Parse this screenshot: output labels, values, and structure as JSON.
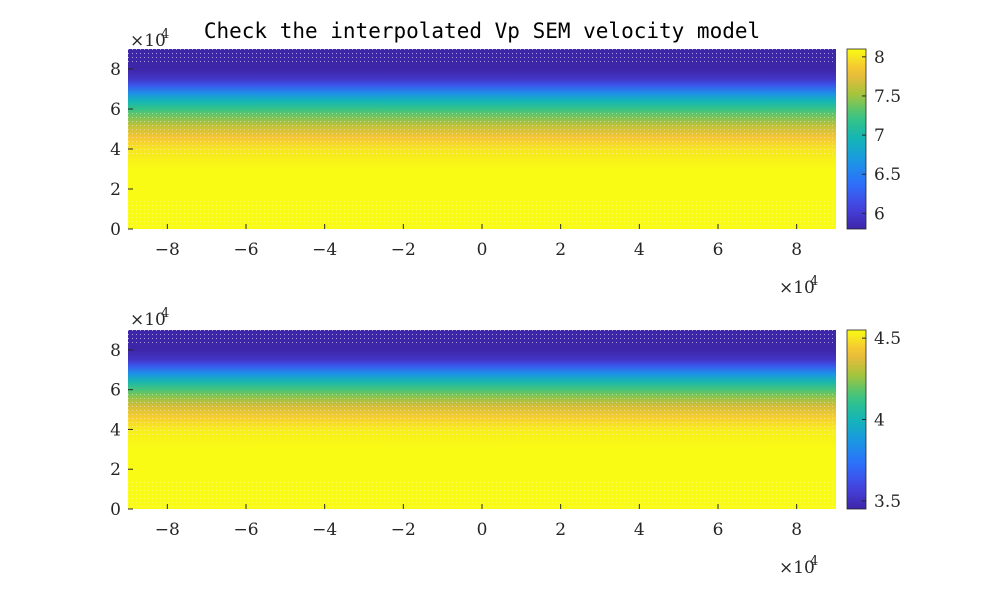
{
  "chart_data": [
    {
      "type": "heatmap",
      "title": "Check the interpolated Vp SEM velocity model",
      "x_ticks": [
        -8,
        -6,
        -4,
        -2,
        0,
        2,
        4,
        6,
        8
      ],
      "y_ticks": [
        0,
        2,
        4,
        6,
        8
      ],
      "xlim": [
        -90000,
        90000
      ],
      "ylim": [
        0,
        90000
      ],
      "x_exponent_label": "×10",
      "x_exponent_power": "4",
      "y_exponent_label": "×10",
      "y_exponent_power": "4",
      "colorbar": {
        "range": [
          5.8,
          8.1
        ],
        "ticks": [
          "6",
          "6.5",
          "7",
          "7.5",
          "8"
        ],
        "tick_values": [
          6,
          6.5,
          7,
          7.5,
          8
        ]
      },
      "profile_y": [
        90000,
        80000,
        75000,
        72000,
        68000,
        64000,
        60000,
        56000,
        52000,
        46000,
        40000,
        30000,
        0
      ],
      "profile_v": [
        5.8,
        5.8,
        5.95,
        6.2,
        6.6,
        6.95,
        7.2,
        7.4,
        7.6,
        7.85,
        8.0,
        8.1,
        8.1
      ],
      "colors": {
        "low": "#3e26a8",
        "mid": "#14b5b6",
        "high": "#f9fb14"
      }
    },
    {
      "type": "heatmap",
      "title": "",
      "x_ticks": [
        -8,
        -6,
        -4,
        -2,
        0,
        2,
        4,
        6,
        8
      ],
      "y_ticks": [
        0,
        2,
        4,
        6,
        8
      ],
      "xlim": [
        -90000,
        90000
      ],
      "ylim": [
        0,
        90000
      ],
      "x_exponent_label": "×10",
      "x_exponent_power": "4",
      "y_exponent_label": "×10",
      "y_exponent_power": "4",
      "colorbar": {
        "range": [
          3.45,
          4.55
        ],
        "ticks": [
          "3.5",
          "4",
          "4.5"
        ],
        "tick_values": [
          3.5,
          4,
          4.5
        ]
      },
      "profile_y": [
        90000,
        80000,
        75000,
        72000,
        68000,
        64000,
        60000,
        56000,
        52000,
        46000,
        40000,
        30000,
        0
      ],
      "profile_v": [
        3.45,
        3.45,
        3.52,
        3.65,
        3.85,
        4.02,
        4.15,
        4.25,
        4.35,
        4.45,
        4.52,
        4.55,
        4.55
      ],
      "colors": {
        "low": "#3e26a8",
        "mid": "#14b5b6",
        "high": "#f9fb14"
      }
    }
  ]
}
